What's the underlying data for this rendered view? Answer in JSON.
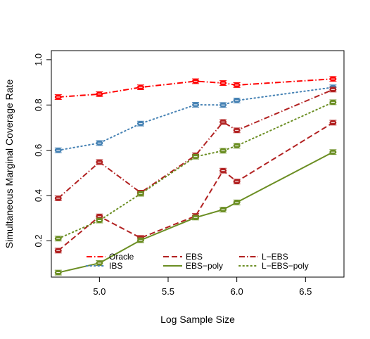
{
  "chart_data": {
    "type": "line",
    "xlabel": "Log Sample Size",
    "ylabel": "Simultaneous Marginal Coverage Rate",
    "xlim": [
      4.65,
      6.78
    ],
    "ylim": [
      0.04,
      1.04
    ],
    "xticks": [
      5.0,
      5.5,
      6.0,
      6.5
    ],
    "xtick_labels": [
      "5.0",
      "5.5",
      "6.0",
      "6.5"
    ],
    "yticks": [
      0.2,
      0.4,
      0.6,
      0.8,
      1.0
    ],
    "ytick_labels": [
      "0.2",
      "0.4",
      "0.6",
      "0.8",
      "1.0"
    ],
    "grid": false,
    "legend_position": "bottom-inside",
    "x": [
      4.7,
      5.0,
      5.3,
      5.7,
      5.9,
      6.0,
      6.7
    ],
    "series": [
      {
        "name": "Oracle",
        "color": "#ff0000",
        "dash": "dashdot",
        "values": [
          0.835,
          0.848,
          0.878,
          0.905,
          0.897,
          0.888,
          0.915
        ]
      },
      {
        "name": "IBS",
        "color": "#4682b4",
        "dash": "dotted",
        "values": [
          0.6,
          0.632,
          0.718,
          0.801,
          0.8,
          0.82,
          0.878
        ]
      },
      {
        "name": "EBS",
        "color": "#b22222",
        "dash": "dashed",
        "values": [
          0.157,
          0.308,
          0.213,
          0.31,
          0.51,
          0.462,
          0.722
        ]
      },
      {
        "name": "EBS−poly",
        "color": "#6b8e23",
        "dash": "solid",
        "values": [
          0.06,
          0.102,
          0.203,
          0.303,
          0.338,
          0.37,
          0.592
        ]
      },
      {
        "name": "L−EBS",
        "color": "#b22222",
        "dash": "dashdot",
        "values": [
          0.388,
          0.548,
          0.413,
          0.578,
          0.725,
          0.688,
          0.868
        ]
      },
      {
        "name": "L−EBS−poly",
        "color": "#6b8e23",
        "dash": "dotted",
        "values": [
          0.21,
          0.29,
          0.408,
          0.572,
          0.598,
          0.62,
          0.812
        ]
      }
    ]
  }
}
